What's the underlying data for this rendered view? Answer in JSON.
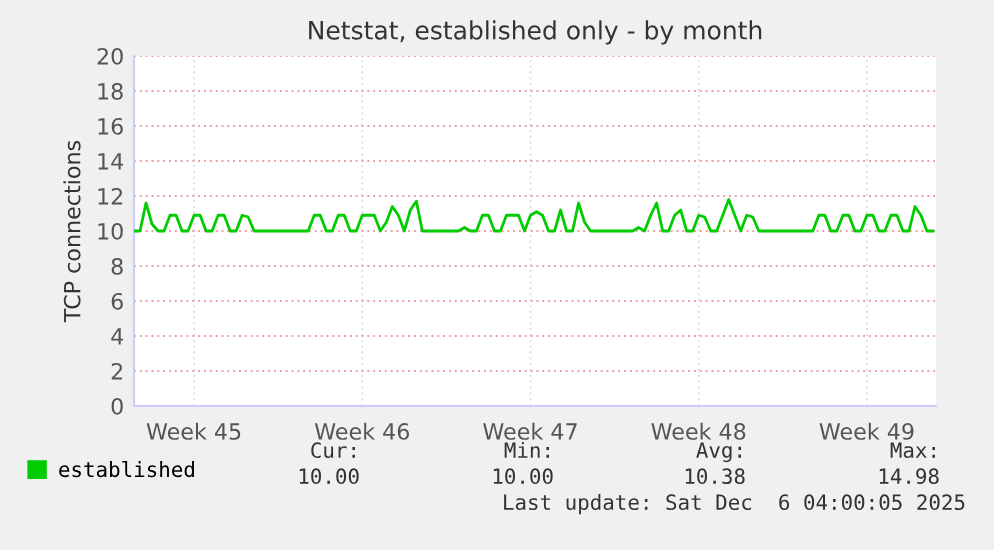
{
  "chart_data": {
    "type": "line",
    "title": "Netstat, established only - by month",
    "ylabel": "TCP connections",
    "categories": [
      null,
      null,
      null,
      null,
      null,
      null,
      null,
      null,
      null,
      null,
      "Week 45",
      null,
      null,
      null,
      null,
      null,
      null,
      null,
      null,
      null,
      null,
      null,
      null,
      null,
      null,
      null,
      null,
      null,
      null,
      null,
      null,
      null,
      null,
      null,
      null,
      null,
      null,
      null,
      "Week 46",
      null,
      null,
      null,
      null,
      null,
      null,
      null,
      null,
      null,
      null,
      null,
      null,
      null,
      null,
      null,
      null,
      null,
      null,
      null,
      null,
      null,
      null,
      null,
      null,
      null,
      null,
      null,
      "Week 47",
      null,
      null,
      null,
      null,
      null,
      null,
      null,
      null,
      null,
      null,
      null,
      null,
      null,
      null,
      null,
      null,
      null,
      null,
      null,
      null,
      null,
      null,
      null,
      null,
      null,
      null,
      null,
      "Week 48",
      null,
      null,
      null,
      null,
      null,
      null,
      null,
      null,
      null,
      null,
      null,
      null,
      null,
      null,
      null,
      null,
      null,
      null,
      null,
      null,
      null,
      null,
      null,
      null,
      null,
      null,
      null,
      "Week 49",
      null,
      null,
      null,
      null,
      null,
      null,
      null,
      null,
      null,
      null,
      null
    ],
    "series": [
      {
        "name": "established",
        "color": "#00cc00",
        "values": [
          10,
          10,
          11.6,
          10.4,
          10,
          10,
          10.9,
          10.9,
          10,
          10,
          10.9,
          10.9,
          10,
          10,
          10.9,
          10.9,
          10,
          10,
          10.9,
          10.8,
          10,
          10,
          10,
          10,
          10,
          10,
          10,
          10,
          10,
          10,
          10.9,
          10.9,
          10,
          10,
          10.9,
          10.9,
          10,
          10,
          10.9,
          10.9,
          10.9,
          10,
          10.5,
          11.4,
          10.9,
          10,
          11.2,
          11.7,
          10,
          10,
          10,
          10,
          10,
          10,
          10,
          10.2,
          10,
          10,
          10.9,
          10.9,
          10,
          10,
          10.9,
          10.9,
          10.9,
          10,
          10.9,
          11.1,
          10.9,
          10,
          10,
          11.2,
          10,
          10,
          11.6,
          10.5,
          10,
          10,
          10,
          10,
          10,
          10,
          10,
          10,
          10.2,
          10,
          10.9,
          11.6,
          10,
          10,
          10.9,
          11.2,
          10,
          10,
          10.9,
          10.8,
          10,
          10,
          10.9,
          11.8,
          10.9,
          10,
          10.9,
          10.8,
          10,
          10,
          10,
          10,
          10,
          10,
          10,
          10,
          10,
          10,
          10.9,
          10.9,
          10,
          10,
          10.9,
          10.9,
          10,
          10,
          10.9,
          10.9,
          10,
          10,
          10.9,
          10.9,
          10,
          10,
          11.4,
          10.9,
          10,
          10
        ]
      }
    ],
    "ylim": [
      0,
      20
    ],
    "yticks": [
      0,
      2,
      4,
      6,
      8,
      10,
      12,
      14,
      16,
      18,
      20
    ],
    "grid": true,
    "legend": "bottom",
    "marker": "none",
    "line_style": "solid",
    "annotations": [
      "Cur:",
      "Min:",
      "Avg:",
      "Max:",
      "10.00",
      "10.00",
      "10.38",
      "14.98",
      "Last update: Sat Dec  6 04:00:05 2025"
    ]
  }
}
